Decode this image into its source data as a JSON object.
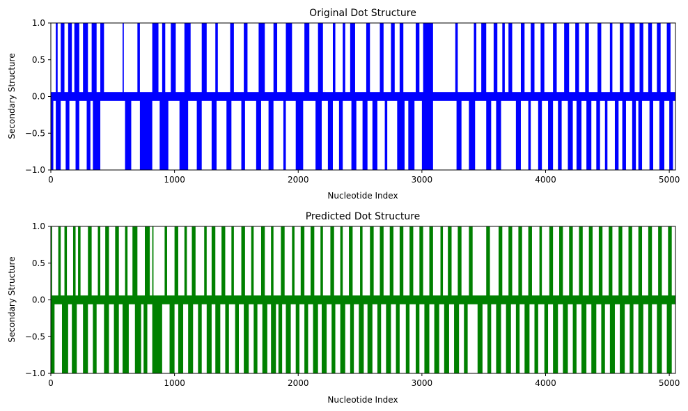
{
  "chart_data": [
    {
      "type": "line",
      "title": "Original Dot Structure",
      "xlabel": "Nucleotide Index",
      "ylabel": "Secondary Structure",
      "xlim": [
        0,
        5050
      ],
      "ylim": [
        -1.0,
        1.0
      ],
      "x_ticks": [
        "0",
        "1000",
        "2000",
        "3000",
        "4000",
        "5000"
      ],
      "y_ticks": [
        "−1.0",
        "−0.5",
        "0.0",
        "0.5",
        "1.0"
      ],
      "color": "#0000ff",
      "grid": false,
      "signal_encoding": "value +1 = opening pair, -1 = closing pair, 0 = unpaired; rendered as dense vertical strokes",
      "up_regions": [
        [
          40,
          55
        ],
        [
          80,
          110
        ],
        [
          140,
          170
        ],
        [
          190,
          230
        ],
        [
          260,
          300
        ],
        [
          330,
          370
        ],
        [
          400,
          430
        ],
        [
          580,
          590
        ],
        [
          700,
          720
        ],
        [
          820,
          870
        ],
        [
          900,
          925
        ],
        [
          970,
          1010
        ],
        [
          1080,
          1130
        ],
        [
          1220,
          1260
        ],
        [
          1330,
          1350
        ],
        [
          1450,
          1480
        ],
        [
          1560,
          1590
        ],
        [
          1680,
          1730
        ],
        [
          1800,
          1830
        ],
        [
          1900,
          1950
        ],
        [
          2050,
          2090
        ],
        [
          2160,
          2200
        ],
        [
          2280,
          2300
        ],
        [
          2360,
          2380
        ],
        [
          2420,
          2460
        ],
        [
          2550,
          2580
        ],
        [
          2660,
          2690
        ],
        [
          2750,
          2780
        ],
        [
          2820,
          2850
        ],
        [
          2950,
          2980
        ],
        [
          3010,
          3090
        ],
        [
          3270,
          3290
        ],
        [
          3420,
          3440
        ],
        [
          3480,
          3520
        ],
        [
          3580,
          3610
        ],
        [
          3650,
          3670
        ],
        [
          3700,
          3730
        ],
        [
          3800,
          3830
        ],
        [
          3880,
          3910
        ],
        [
          3960,
          3990
        ],
        [
          4060,
          4090
        ],
        [
          4150,
          4190
        ],
        [
          4240,
          4270
        ],
        [
          4320,
          4350
        ],
        [
          4420,
          4450
        ],
        [
          4520,
          4540
        ],
        [
          4600,
          4630
        ],
        [
          4680,
          4720
        ],
        [
          4760,
          4790
        ],
        [
          4830,
          4860
        ],
        [
          4900,
          4930
        ],
        [
          4980,
          5010
        ]
      ],
      "down_regions": [
        [
          0,
          20
        ],
        [
          40,
          80
        ],
        [
          120,
          150
        ],
        [
          200,
          230
        ],
        [
          290,
          320
        ],
        [
          340,
          400
        ],
        [
          600,
          650
        ],
        [
          720,
          820
        ],
        [
          880,
          950
        ],
        [
          1040,
          1110
        ],
        [
          1180,
          1220
        ],
        [
          1300,
          1340
        ],
        [
          1420,
          1460
        ],
        [
          1540,
          1570
        ],
        [
          1660,
          1700
        ],
        [
          1760,
          1800
        ],
        [
          1880,
          1900
        ],
        [
          1980,
          2040
        ],
        [
          2140,
          2190
        ],
        [
          2240,
          2280
        ],
        [
          2330,
          2360
        ],
        [
          2430,
          2470
        ],
        [
          2520,
          2560
        ],
        [
          2600,
          2640
        ],
        [
          2700,
          2720
        ],
        [
          2800,
          2860
        ],
        [
          2890,
          2940
        ],
        [
          3000,
          3090
        ],
        [
          3280,
          3320
        ],
        [
          3380,
          3430
        ],
        [
          3520,
          3560
        ],
        [
          3600,
          3640
        ],
        [
          3760,
          3800
        ],
        [
          3860,
          3880
        ],
        [
          3940,
          3970
        ],
        [
          4020,
          4060
        ],
        [
          4100,
          4130
        ],
        [
          4180,
          4220
        ],
        [
          4250,
          4290
        ],
        [
          4330,
          4370
        ],
        [
          4410,
          4440
        ],
        [
          4480,
          4500
        ],
        [
          4560,
          4590
        ],
        [
          4620,
          4650
        ],
        [
          4700,
          4730
        ],
        [
          4750,
          4780
        ],
        [
          4840,
          4870
        ],
        [
          4920,
          4960
        ],
        [
          5000,
          5030
        ]
      ]
    },
    {
      "type": "line",
      "title": "Predicted Dot Structure",
      "xlabel": "Nucleotide Index",
      "ylabel": "Secondary Structure",
      "xlim": [
        0,
        5050
      ],
      "ylim": [
        -1.0,
        1.0
      ],
      "x_ticks": [
        "0",
        "1000",
        "2000",
        "3000",
        "4000",
        "5000"
      ],
      "y_ticks": [
        "−1.0",
        "−0.5",
        "0.0",
        "0.5",
        "1.0"
      ],
      "color": "#008000",
      "grid": false,
      "signal_encoding": "value +1 = opening pair, -1 = closing pair, 0 = unpaired; rendered as dense vertical strokes",
      "up_regions": [
        [
          0,
          10
        ],
        [
          60,
          80
        ],
        [
          110,
          130
        ],
        [
          180,
          200
        ],
        [
          220,
          240
        ],
        [
          300,
          330
        ],
        [
          380,
          400
        ],
        [
          440,
          470
        ],
        [
          520,
          550
        ],
        [
          600,
          620
        ],
        [
          660,
          700
        ],
        [
          760,
          800
        ],
        [
          820,
          830
        ],
        [
          920,
          940
        ],
        [
          1000,
          1030
        ],
        [
          1080,
          1100
        ],
        [
          1140,
          1170
        ],
        [
          1240,
          1260
        ],
        [
          1300,
          1330
        ],
        [
          1380,
          1410
        ],
        [
          1460,
          1480
        ],
        [
          1540,
          1570
        ],
        [
          1620,
          1640
        ],
        [
          1700,
          1730
        ],
        [
          1780,
          1800
        ],
        [
          1860,
          1890
        ],
        [
          1950,
          1970
        ],
        [
          2020,
          2050
        ],
        [
          2100,
          2130
        ],
        [
          2180,
          2200
        ],
        [
          2260,
          2290
        ],
        [
          2340,
          2360
        ],
        [
          2410,
          2440
        ],
        [
          2500,
          2520
        ],
        [
          2580,
          2610
        ],
        [
          2660,
          2690
        ],
        [
          2740,
          2770
        ],
        [
          2820,
          2850
        ],
        [
          2900,
          2930
        ],
        [
          2980,
          3010
        ],
        [
          3060,
          3090
        ],
        [
          3150,
          3170
        ],
        [
          3210,
          3240
        ],
        [
          3290,
          3320
        ],
        [
          3380,
          3410
        ],
        [
          3520,
          3550
        ],
        [
          3620,
          3650
        ],
        [
          3700,
          3730
        ],
        [
          3780,
          3810
        ],
        [
          3860,
          3890
        ],
        [
          3950,
          3970
        ],
        [
          4030,
          4060
        ],
        [
          4110,
          4140
        ],
        [
          4190,
          4220
        ],
        [
          4270,
          4300
        ],
        [
          4350,
          4380
        ],
        [
          4430,
          4460
        ],
        [
          4510,
          4540
        ],
        [
          4590,
          4620
        ],
        [
          4670,
          4700
        ],
        [
          4750,
          4780
        ],
        [
          4830,
          4860
        ],
        [
          4910,
          4940
        ],
        [
          4990,
          5020
        ]
      ],
      "down_regions": [
        [
          0,
          30
        ],
        [
          90,
          140
        ],
        [
          170,
          210
        ],
        [
          260,
          300
        ],
        [
          340,
          370
        ],
        [
          430,
          470
        ],
        [
          510,
          550
        ],
        [
          580,
          630
        ],
        [
          680,
          730
        ],
        [
          750,
          780
        ],
        [
          820,
          900
        ],
        [
          960,
          1000
        ],
        [
          1030,
          1070
        ],
        [
          1110,
          1150
        ],
        [
          1190,
          1220
        ],
        [
          1260,
          1300
        ],
        [
          1330,
          1370
        ],
        [
          1410,
          1440
        ],
        [
          1490,
          1520
        ],
        [
          1560,
          1600
        ],
        [
          1640,
          1670
        ],
        [
          1710,
          1750
        ],
        [
          1780,
          1820
        ],
        [
          1840,
          1870
        ],
        [
          1900,
          1940
        ],
        [
          1980,
          2010
        ],
        [
          2050,
          2080
        ],
        [
          2120,
          2160
        ],
        [
          2190,
          2230
        ],
        [
          2270,
          2300
        ],
        [
          2340,
          2380
        ],
        [
          2420,
          2450
        ],
        [
          2490,
          2530
        ],
        [
          2560,
          2600
        ],
        [
          2640,
          2670
        ],
        [
          2710,
          2750
        ],
        [
          2790,
          2820
        ],
        [
          2870,
          2900
        ],
        [
          2950,
          2980
        ],
        [
          3020,
          3060
        ],
        [
          3100,
          3140
        ],
        [
          3180,
          3220
        ],
        [
          3260,
          3300
        ],
        [
          3340,
          3370
        ],
        [
          3450,
          3490
        ],
        [
          3530,
          3560
        ],
        [
          3600,
          3640
        ],
        [
          3680,
          3720
        ],
        [
          3760,
          3790
        ],
        [
          3830,
          3870
        ],
        [
          3910,
          3940
        ],
        [
          3990,
          4020
        ],
        [
          4060,
          4100
        ],
        [
          4140,
          4180
        ],
        [
          4220,
          4250
        ],
        [
          4290,
          4330
        ],
        [
          4370,
          4410
        ],
        [
          4450,
          4480
        ],
        [
          4520,
          4560
        ],
        [
          4600,
          4640
        ],
        [
          4680,
          4710
        ],
        [
          4750,
          4790
        ],
        [
          4830,
          4860
        ],
        [
          4900,
          4940
        ],
        [
          4980,
          5020
        ]
      ]
    }
  ]
}
